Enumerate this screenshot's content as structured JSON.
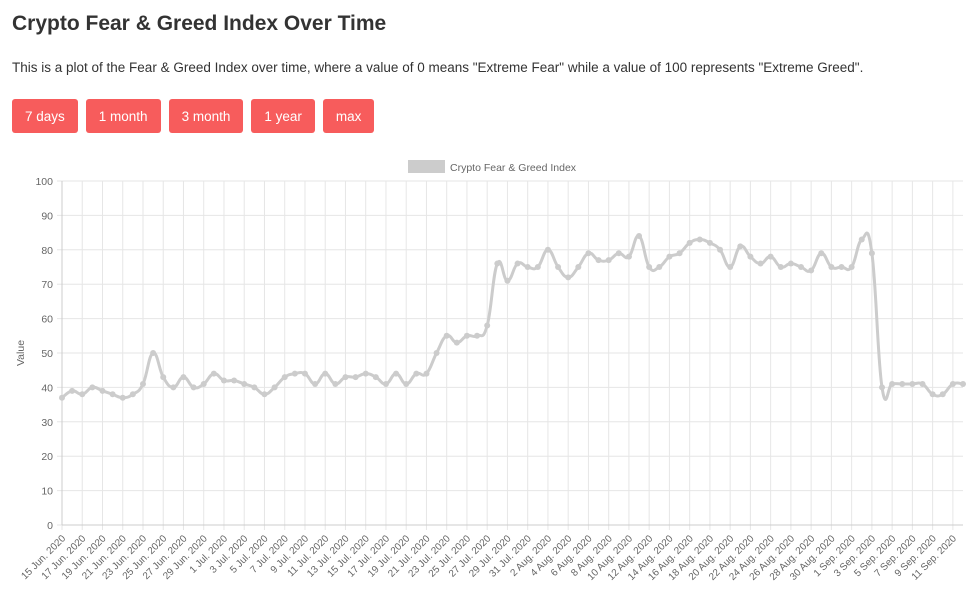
{
  "page": {
    "title": "Crypto Fear & Greed Index Over Time",
    "description": "This is a plot of the Fear & Greed Index over time, where a value of 0 means \"Extreme Fear\" while a value of 100 represents \"Extreme Greed\"."
  },
  "range_buttons": [
    {
      "label": "7 days"
    },
    {
      "label": "1 month"
    },
    {
      "label": "3 month"
    },
    {
      "label": "1 year"
    },
    {
      "label": "max"
    }
  ],
  "colors": {
    "button_bg": "#f75c5c",
    "button_text": "#ffffff",
    "series_line": "#cccccc",
    "grid": "#e6e6e6",
    "axis_text": "#666666"
  },
  "chart_data": {
    "type": "line",
    "ylabel": "Value",
    "ylim": [
      0,
      100
    ],
    "yticks": [
      0,
      10,
      20,
      30,
      40,
      50,
      60,
      70,
      80,
      90,
      100
    ],
    "grid": true,
    "legend_position": "top-center",
    "x": [
      "15 Jun. 2020",
      "16 Jun. 2020",
      "17 Jun. 2020",
      "18 Jun. 2020",
      "19 Jun. 2020",
      "20 Jun. 2020",
      "21 Jun. 2020",
      "22 Jun. 2020",
      "23 Jun. 2020",
      "24 Jun. 2020",
      "25 Jun. 2020",
      "26 Jun. 2020",
      "27 Jun. 2020",
      "28 Jun. 2020",
      "29 Jun. 2020",
      "30 Jun. 2020",
      "1 Jul. 2020",
      "2 Jul. 2020",
      "3 Jul. 2020",
      "4 Jul. 2020",
      "5 Jul. 2020",
      "6 Jul. 2020",
      "7 Jul. 2020",
      "8 Jul. 2020",
      "9 Jul. 2020",
      "10 Jul. 2020",
      "11 Jul. 2020",
      "12 Jul. 2020",
      "13 Jul. 2020",
      "14 Jul. 2020",
      "15 Jul. 2020",
      "16 Jul. 2020",
      "17 Jul. 2020",
      "18 Jul. 2020",
      "19 Jul. 2020",
      "20 Jul. 2020",
      "21 Jul. 2020",
      "22 Jul. 2020",
      "23 Jul. 2020",
      "24 Jul. 2020",
      "25 Jul. 2020",
      "26 Jul. 2020",
      "27 Jul. 2020",
      "28 Jul. 2020",
      "29 Jul. 2020",
      "30 Jul. 2020",
      "31 Jul. 2020",
      "1 Aug. 2020",
      "2 Aug. 2020",
      "3 Aug. 2020",
      "4 Aug. 2020",
      "5 Aug. 2020",
      "6 Aug. 2020",
      "7 Aug. 2020",
      "8 Aug. 2020",
      "9 Aug. 2020",
      "10 Aug. 2020",
      "11 Aug. 2020",
      "12 Aug. 2020",
      "13 Aug. 2020",
      "14 Aug. 2020",
      "15 Aug. 2020",
      "16 Aug. 2020",
      "17 Aug. 2020",
      "18 Aug. 2020",
      "19 Aug. 2020",
      "20 Aug. 2020",
      "21 Aug. 2020",
      "22 Aug. 2020",
      "23 Aug. 2020",
      "24 Aug. 2020",
      "25 Aug. 2020",
      "26 Aug. 2020",
      "27 Aug. 2020",
      "28 Aug. 2020",
      "29 Aug. 2020",
      "30 Aug. 2020",
      "31 Aug. 2020",
      "1 Sep. 2020",
      "2 Sep. 2020",
      "3 Sep. 2020",
      "4 Sep. 2020",
      "5 Sep. 2020",
      "6 Sep. 2020",
      "7 Sep. 2020",
      "8 Sep. 2020",
      "9 Sep. 2020",
      "10 Sep. 2020",
      "11 Sep. 2020",
      "12 Sep. 2020"
    ],
    "xtick_labels": [
      "15 Jun. 2020",
      "17 Jun. 2020",
      "19 Jun. 2020",
      "21 Jun. 2020",
      "23 Jun. 2020",
      "25 Jun. 2020",
      "27 Jun. 2020",
      "29 Jun. 2020",
      "1 Jul. 2020",
      "3 Jul. 2020",
      "5 Jul. 2020",
      "7 Jul. 2020",
      "9 Jul. 2020",
      "11 Jul. 2020",
      "13 Jul. 2020",
      "15 Jul. 2020",
      "17 Jul. 2020",
      "19 Jul. 2020",
      "21 Jul. 2020",
      "23 Jul. 2020",
      "25 Jul. 2020",
      "27 Jul. 2020",
      "29 Jul. 2020",
      "31 Jul. 2020",
      "2 Aug. 2020",
      "4 Aug. 2020",
      "6 Aug. 2020",
      "8 Aug. 2020",
      "10 Aug. 2020",
      "12 Aug. 2020",
      "14 Aug. 2020",
      "16 Aug. 2020",
      "18 Aug. 2020",
      "20 Aug. 2020",
      "22 Aug. 2020",
      "24 Aug. 2020",
      "26 Aug. 2020",
      "28 Aug. 2020",
      "30 Aug. 2020",
      "1 Sep. 2020",
      "3 Sep. 2020",
      "5 Sep. 2020",
      "7 Sep. 2020",
      "9 Sep. 2020",
      "11 Sep. 2020"
    ],
    "series": [
      {
        "name": "Crypto Fear & Greed Index",
        "values": [
          37,
          39,
          38,
          40,
          39,
          38,
          37,
          38,
          41,
          50,
          43,
          40,
          43,
          40,
          41,
          44,
          42,
          42,
          41,
          40,
          38,
          40,
          43,
          44,
          44,
          41,
          44,
          41,
          43,
          43,
          44,
          43,
          41,
          44,
          41,
          44,
          44,
          50,
          55,
          53,
          55,
          55,
          58,
          76,
          71,
          76,
          75,
          75,
          80,
          75,
          72,
          75,
          79,
          77,
          77,
          79,
          78,
          84,
          75,
          75,
          78,
          79,
          82,
          83,
          82,
          80,
          75,
          81,
          78,
          76,
          78,
          75,
          76,
          75,
          74,
          79,
          75,
          75,
          75,
          83,
          79,
          40,
          41,
          41,
          41,
          41,
          38,
          38,
          41,
          41
        ]
      }
    ]
  }
}
